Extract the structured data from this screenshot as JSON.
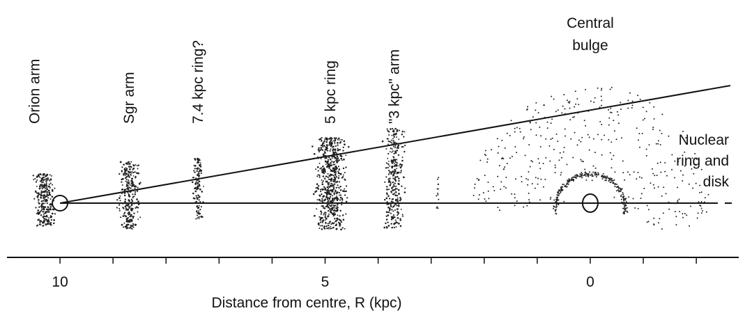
{
  "axis": {
    "label": "Distance from centre, R  (kpc)",
    "xlim": [
      11,
      -2.8
    ],
    "ticks": [
      10,
      9,
      8,
      7,
      6,
      5,
      4,
      3,
      2,
      1,
      0,
      -1,
      -2
    ],
    "labeled_ticks": [
      10,
      5,
      0
    ]
  },
  "sun": {
    "r": 10
  },
  "features": [
    {
      "label": "Orion arm",
      "r": 10.3
    },
    {
      "label": "Sgr  arm",
      "r": 8.7
    },
    {
      "label": "7.4 kpc ring?",
      "r": 7.4
    },
    {
      "label": "5 kpc ring",
      "r": 4.9
    },
    {
      "label": "\"3 kpc\" arm",
      "r": 3.7
    }
  ],
  "bulge": {
    "label_lines": [
      "Central",
      "bulge"
    ],
    "r": 0
  },
  "nucleus": {
    "label_lines": [
      "Nuclear",
      "ring and",
      "disk"
    ],
    "r": 0
  }
}
